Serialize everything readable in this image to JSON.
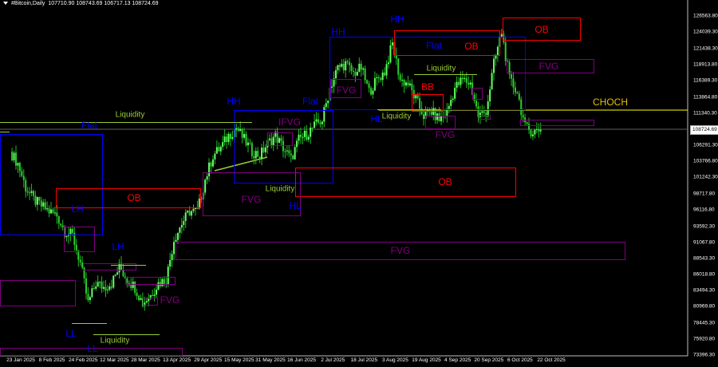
{
  "header": {
    "symbol": "#Bitcoin,Daily",
    "open": "107710.90",
    "high": "108743.69",
    "low": "106717.13",
    "close": "108724.69"
  },
  "colors": {
    "bull": "#2ecc2e",
    "bull_border": "#66ff66",
    "wick": "#22bb22",
    "choch": "#ffff00",
    "price_line": "#606060",
    "axis": "#c0c0c0"
  },
  "chart_data": {
    "type": "candlestick",
    "title": "#Bitcoin,Daily",
    "y_ticks": [
      "126563.80",
      "124039.30",
      "121438.30",
      "118913.80",
      "116389.30",
      "113864.80",
      "111340.30",
      "106291.30",
      "103766.80",
      "101242.30",
      "98717.80",
      "96116.80",
      "93592.30",
      "91067.80",
      "88543.30",
      "86018.80",
      "83494.30",
      "80969.80",
      "78445.30",
      "75920.80",
      "73396.30"
    ],
    "x_ticks": [
      "23 Jan 2025",
      "8 Feb 2025",
      "24 Feb 2025",
      "12 Mar 2025",
      "28 Mar 2025",
      "13 Apr 2025",
      "29 Apr 2025",
      "15 May 2025",
      "31 May 2025",
      "16 Jun 2025",
      "2 Jul 2025",
      "18 Jul 2025",
      "3 Aug 2025",
      "19 Aug 2025",
      "4 Sep 2025",
      "20 Sep 2025",
      "6 Oct 2025",
      "22 Oct 2025"
    ],
    "ylim": [
      73396.3,
      126563.8
    ],
    "current_price": "108724.69",
    "choch_level": 111340,
    "closes": [
      [
        "2025-01-21",
        105300
      ],
      [
        "2025-01-25",
        103420
      ],
      [
        "2025-01-29",
        99670
      ],
      [
        "2025-02-02",
        97790
      ],
      [
        "2025-02-06",
        96790
      ],
      [
        "2025-02-10",
        95910
      ],
      [
        "2025-02-14",
        95290
      ],
      [
        "2025-02-18",
        92790
      ],
      [
        "2025-02-22",
        92160
      ],
      [
        "2025-02-26",
        87780
      ],
      [
        "2025-03-02",
        81530
      ],
      [
        "2025-03-06",
        84660
      ],
      [
        "2025-03-10",
        84030
      ],
      [
        "2025-03-14",
        84660
      ],
      [
        "2025-03-18",
        87160
      ],
      [
        "2025-03-22",
        85280
      ],
      [
        "2025-03-26",
        84030
      ],
      [
        "2025-03-30",
        81530
      ],
      [
        "2025-04-03",
        82780
      ],
      [
        "2025-04-07",
        84660
      ],
      [
        "2025-04-11",
        85280
      ],
      [
        "2025-04-15",
        91540
      ],
      [
        "2025-04-19",
        94040
      ],
      [
        "2025-04-23",
        95910
      ],
      [
        "2025-04-27",
        95910
      ],
      [
        "2025-05-01",
        100920
      ],
      [
        "2025-05-05",
        104670
      ],
      [
        "2025-05-09",
        105920
      ],
      [
        "2025-05-13",
        107800
      ],
      [
        "2025-05-17",
        109050
      ],
      [
        "2025-05-21",
        107170
      ],
      [
        "2025-05-25",
        105300
      ],
      [
        "2025-05-29",
        104670
      ],
      [
        "2025-06-02",
        106550
      ],
      [
        "2025-06-06",
        107800
      ],
      [
        "2025-06-10",
        105920
      ],
      [
        "2025-06-14",
        104050
      ],
      [
        "2025-06-18",
        107170
      ],
      [
        "2025-06-22",
        108050
      ],
      [
        "2025-06-26",
        109300
      ],
      [
        "2025-06-30",
        110300
      ],
      [
        "2025-07-04",
        115300
      ],
      [
        "2025-07-08",
        118430
      ],
      [
        "2025-07-12",
        119060
      ],
      [
        "2025-07-16",
        117560
      ],
      [
        "2025-07-20",
        118430
      ],
      [
        "2025-07-24",
        114680
      ],
      [
        "2025-07-28",
        116560
      ],
      [
        "2025-08-01",
        117810
      ],
      [
        "2025-08-05",
        122190
      ],
      [
        "2025-08-09",
        116560
      ],
      [
        "2025-08-13",
        115930
      ],
      [
        "2025-08-17",
        113430
      ],
      [
        "2025-08-21",
        110930
      ],
      [
        "2025-08-25",
        111550
      ],
      [
        "2025-08-29",
        110300
      ],
      [
        "2025-09-02",
        111550
      ],
      [
        "2025-09-06",
        115300
      ],
      [
        "2025-09-10",
        116560
      ],
      [
        "2025-09-14",
        115930
      ],
      [
        "2025-09-18",
        110930
      ],
      [
        "2025-09-22",
        111550
      ],
      [
        "2025-09-26",
        119060
      ],
      [
        "2025-09-30",
        124060
      ],
      [
        "2025-10-04",
        116560
      ],
      [
        "2025-10-08",
        114680
      ],
      [
        "2025-10-12",
        109050
      ],
      [
        "2025-10-16",
        108420
      ],
      [
        "2025-10-20",
        108724.69
      ]
    ],
    "annotations": {
      "flat": [
        "Flat",
        "Flat",
        "Flat"
      ],
      "ob": [
        "OB",
        "OB",
        "OB",
        "OB"
      ],
      "bb": "BB",
      "fvg": [
        "FVG",
        "FVG",
        "FVG",
        "FVG",
        "FVG",
        "FVG"
      ],
      "ifvg": "IFVG",
      "liquidity": [
        "Liquidity",
        "Liquidity",
        "Liquidity",
        "Liquidity",
        "Liquidity"
      ],
      "choch": "CHOCH",
      "structure": [
        "HH",
        "HH",
        "HH",
        "LH",
        "LH",
        "LL",
        "LL",
        "HL",
        "HL"
      ]
    }
  }
}
